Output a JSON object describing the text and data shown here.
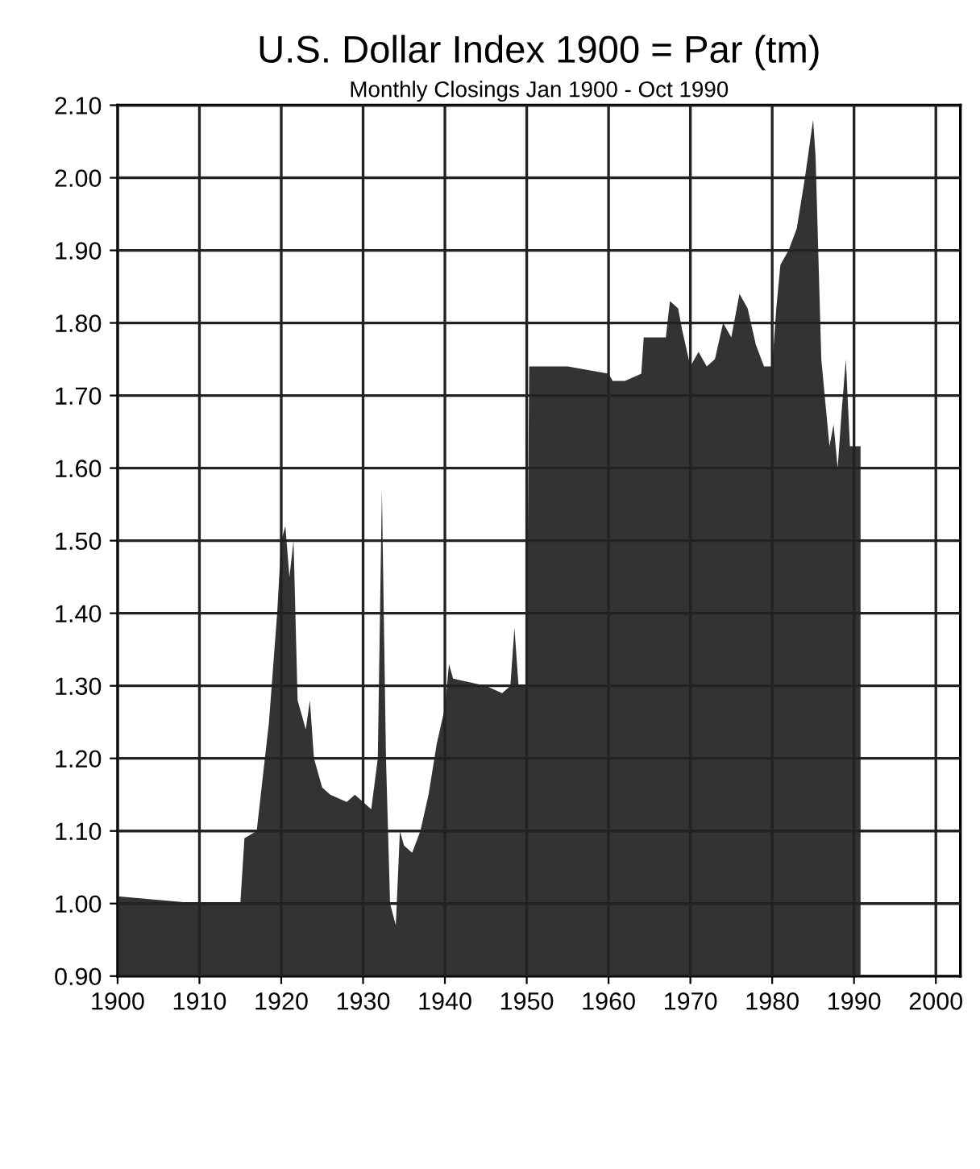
{
  "chart_data": {
    "type": "area",
    "title": "U.S. Dollar Index 1900 = Par (tm)",
    "subtitle": "Monthly Closings Jan 1900 - Oct 1990",
    "x": [
      1900,
      1910,
      1915,
      1915.5,
      1917,
      1918.5,
      1919.5,
      1920,
      1920.5,
      1921,
      1921.5,
      1922,
      1923,
      1923.5,
      1924,
      1925,
      1926,
      1928,
      1929,
      1930,
      1931,
      1931.8,
      1932.3,
      1932.8,
      1933.3,
      1934,
      1934.5,
      1935,
      1936,
      1937,
      1938,
      1939,
      1940,
      1940.5,
      1941,
      1945,
      1947,
      1948,
      1948.5,
      1949,
      1950,
      1950.3,
      1955,
      1960,
      1960.5,
      1962,
      1964,
      1964.3,
      1966,
      1967,
      1967.5,
      1968.5,
      1969,
      1970,
      1971,
      1972,
      1973,
      1974,
      1975,
      1976,
      1977,
      1978,
      1979,
      1980,
      1980.5,
      1981,
      1982,
      1983,
      1984,
      1985,
      1985.3,
      1986,
      1987,
      1987.5,
      1988,
      1988.5,
      1989,
      1989.5,
      1990.8
    ],
    "series": [
      {
        "color": "#333333",
        "values": [
          1.01,
          1.0,
          1.0,
          1.09,
          1.1,
          1.25,
          1.4,
          1.5,
          1.52,
          1.45,
          1.5,
          1.28,
          1.24,
          1.28,
          1.2,
          1.16,
          1.15,
          1.14,
          1.15,
          1.14,
          1.13,
          1.2,
          1.57,
          1.2,
          1.0,
          0.97,
          1.1,
          1.08,
          1.07,
          1.1,
          1.15,
          1.22,
          1.27,
          1.33,
          1.31,
          1.3,
          1.29,
          1.3,
          1.38,
          1.3,
          1.3,
          1.74,
          1.74,
          1.73,
          1.72,
          1.72,
          1.73,
          1.78,
          1.78,
          1.78,
          1.83,
          1.82,
          1.79,
          1.74,
          1.76,
          1.74,
          1.75,
          1.8,
          1.78,
          1.84,
          1.82,
          1.77,
          1.74,
          1.74,
          1.82,
          1.88,
          1.9,
          1.93,
          2.0,
          2.08,
          2.03,
          1.75,
          1.63,
          1.66,
          1.6,
          1.68,
          1.75,
          1.63,
          1.63
        ]
      }
    ],
    "xlim": [
      1900,
      2003
    ],
    "xticks": [
      1900,
      1910,
      1920,
      1930,
      1940,
      1950,
      1960,
      1970,
      1980,
      1990,
      2000
    ],
    "ylim": [
      0.9,
      2.1
    ],
    "yticks": [
      {
        "value": 0.9,
        "label": "0.90"
      },
      {
        "value": 1.0,
        "label": "1.00"
      },
      {
        "value": 1.1,
        "label": "1.10"
      },
      {
        "value": 1.2,
        "label": "1.20"
      },
      {
        "value": 1.3,
        "label": "1.30"
      },
      {
        "value": 1.4,
        "label": "1.40"
      },
      {
        "value": 1.5,
        "label": "1.50"
      },
      {
        "value": 1.6,
        "label": "1.60"
      },
      {
        "value": 1.7,
        "label": "1.70"
      },
      {
        "value": 1.8,
        "label": "1.80"
      },
      {
        "value": 1.9,
        "label": "1.90"
      },
      {
        "value": 2.0,
        "label": "2.00"
      },
      {
        "value": 2.1,
        "label": "2.10"
      }
    ],
    "grid": true
  }
}
